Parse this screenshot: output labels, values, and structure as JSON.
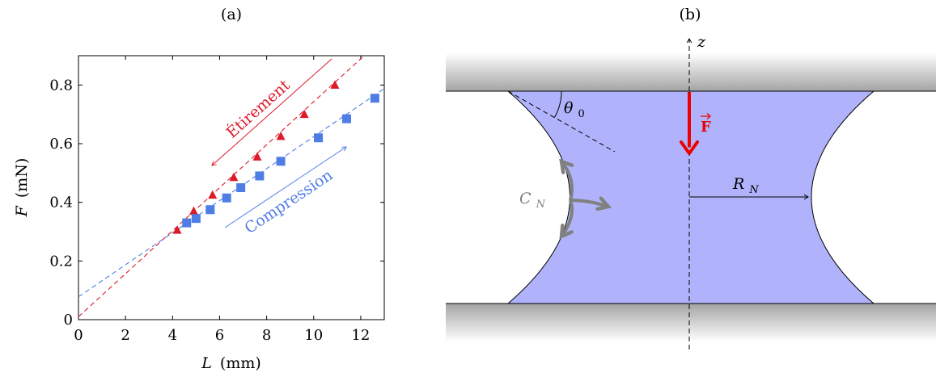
{
  "panel_a": {
    "label": "(a)",
    "chart_data": {
      "type": "scatter",
      "title": "",
      "xlabel_var": "L",
      "xlabel_unit": "(mm)",
      "ylabel_var": "F",
      "ylabel_unit": "(mN)",
      "xlim": [
        0,
        13
      ],
      "ylim": [
        0,
        0.9
      ],
      "x_ticks": [
        0,
        2,
        4,
        6,
        8,
        10,
        12
      ],
      "y_ticks": [
        0,
        0.2,
        0.4,
        0.6,
        0.8
      ],
      "x_tick_labels": [
        "0",
        "2",
        "4",
        "6",
        "8",
        "10",
        "12"
      ],
      "y_tick_labels": [
        "0",
        "0.2",
        "0.4",
        "0.6",
        "0.8"
      ],
      "grid": false,
      "series": [
        {
          "name": "Étirement",
          "marker": "triangle",
          "color": "#dd1a2a",
          "x": [
            4.2,
            4.9,
            5.7,
            6.6,
            7.6,
            8.6,
            9.6,
            10.9
          ],
          "y": [
            0.305,
            0.37,
            0.425,
            0.485,
            0.555,
            0.625,
            0.7,
            0.8
          ],
          "fit": {
            "slope": 0.0733,
            "intercept": 0.01
          }
        },
        {
          "name": "Compression",
          "marker": "square",
          "color": "#4f7de6",
          "x": [
            4.6,
            5.0,
            5.6,
            6.3,
            6.9,
            7.7,
            8.6,
            10.2,
            11.4,
            12.6
          ],
          "y": [
            0.33,
            0.345,
            0.375,
            0.415,
            0.45,
            0.49,
            0.54,
            0.62,
            0.685,
            0.755
          ],
          "fit": {
            "slope": 0.0546,
            "intercept": 0.078
          }
        }
      ],
      "annotations": [
        {
          "text": "Étirement",
          "color": "#dd1a2a",
          "arrow": "toward-lower-L"
        },
        {
          "text": "Compression",
          "color": "#4f7de6",
          "arrow": "toward-higher-L"
        }
      ]
    }
  },
  "panel_b": {
    "label": "(b)",
    "axis_label": "z",
    "force_label": "F",
    "theta_label": "θ",
    "theta_sub": "0",
    "radius_label": "R",
    "radius_sub": "N",
    "curvature_label": "C",
    "curvature_sub": "N",
    "colors": {
      "liquid": "#b0b3fb",
      "force": "#ee0000",
      "curvature": "#808080",
      "plate_dark": "#9a9a9a"
    }
  }
}
